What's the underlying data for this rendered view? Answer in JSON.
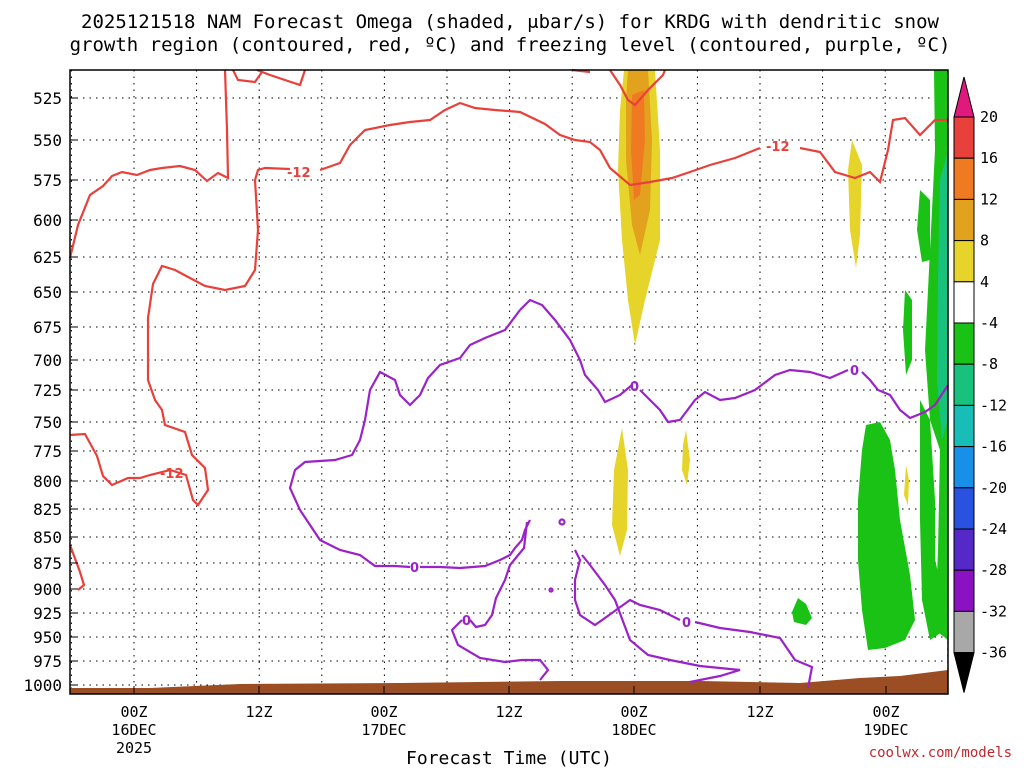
{
  "chart_data": {
    "type": "heatmap",
    "title_line1": "2025121518 NAM Forecast Omega (shaded, μbar/s) for KRDG with dendritic snow",
    "title_line2": "growth region (contoured, red, ºC) and freezing level (contoured, purple, ºC)",
    "xlabel": "Forecast Time (UTC)",
    "ylabel": "",
    "y_ticks": [
      "525",
      "550",
      "575",
      "600",
      "625",
      "650",
      "675",
      "700",
      "725",
      "750",
      "775",
      "800",
      "825",
      "850",
      "875",
      "900",
      "925",
      "950",
      "975",
      "1000"
    ],
    "x_ticks": [
      {
        "top": "00Z",
        "mid": "16DEC",
        "bot": "2025"
      },
      {
        "top": "12Z",
        "mid": "",
        "bot": ""
      },
      {
        "top": "00Z",
        "mid": "17DEC",
        "bot": ""
      },
      {
        "top": "12Z",
        "mid": "",
        "bot": ""
      },
      {
        "top": "00Z",
        "mid": "18DEC",
        "bot": ""
      },
      {
        "top": "12Z",
        "mid": "",
        "bot": ""
      },
      {
        "top": "00Z",
        "mid": "19DEC",
        "bot": ""
      }
    ],
    "colorbar": {
      "labels": [
        "20",
        "16",
        "12",
        "8",
        "4",
        "-4",
        "-8",
        "-12",
        "-16",
        "-20",
        "-24",
        "-28",
        "-32",
        "-36"
      ],
      "colors": [
        "#e8403a",
        "#f07a22",
        "#e3a21e",
        "#e6d42a",
        "#ffffff",
        "#19c214",
        "#19c27c",
        "#18bdb8",
        "#1890e8",
        "#2a52e0",
        "#5528c8",
        "#8a12c0",
        "#a8a8a8"
      ],
      "top_arrow_color": "#e01a7c",
      "bottom_arrow_color": "#000000"
    },
    "contour_labels": {
      "red": [
        "-12",
        "-12",
        "-12"
      ],
      "purple": [
        "0",
        "0",
        "0",
        "0",
        "0"
      ]
    },
    "credit": "coolwx.com/models"
  }
}
